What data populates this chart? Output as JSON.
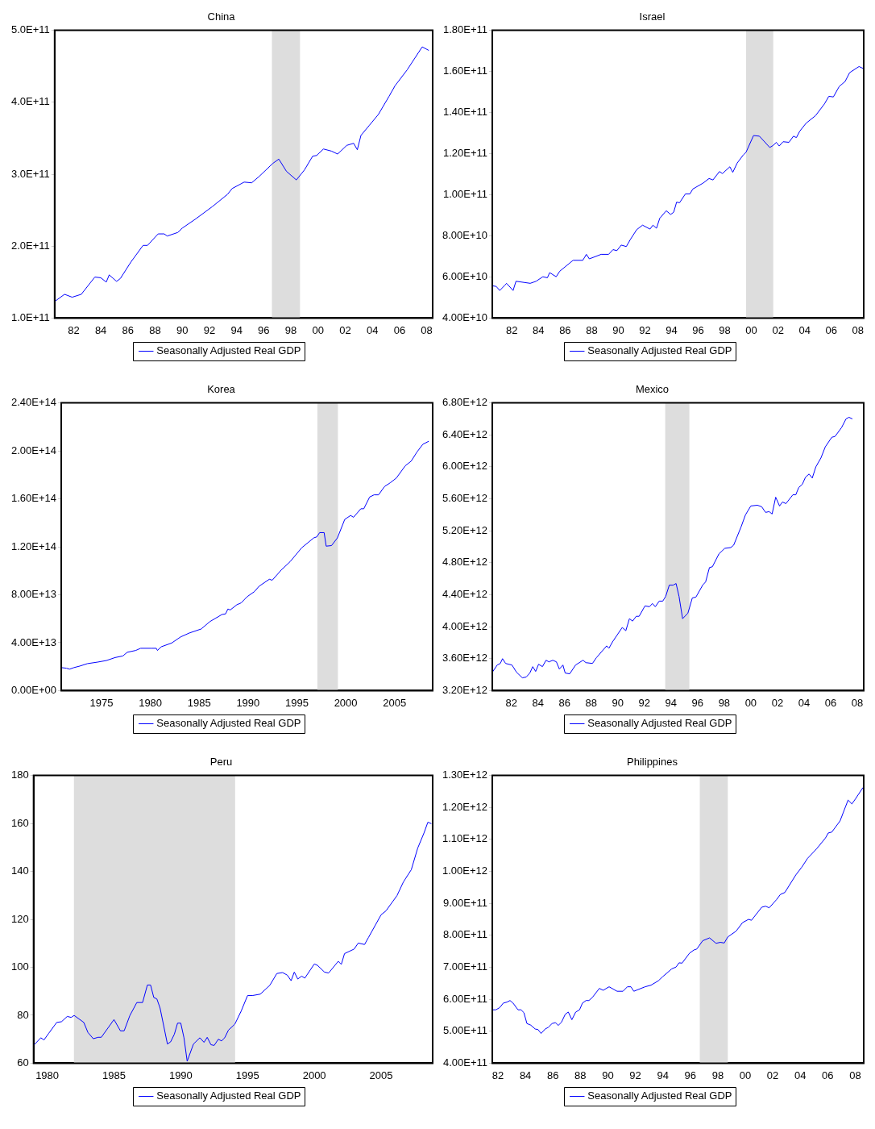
{
  "chart_data": [
    {
      "type": "line",
      "title": "China",
      "legend": "bottom",
      "grid": false,
      "x": [
        1980.6,
        1981.33,
        1981.89,
        1982.56,
        1983.56,
        1984.0,
        1984.4,
        1984.62,
        1985.16,
        1985.44,
        1986.22,
        1987.11,
        1987.44,
        1988.22,
        1988.67,
        1988.89,
        1989.67,
        1990.0,
        1991.0,
        1992.22,
        1993.33,
        1993.67,
        1994.56,
        1995.11,
        1995.67,
        1996.67,
        1997.11,
        1997.67,
        1998.4,
        1999.0,
        1999.6,
        1999.89,
        2000.4,
        2001.0,
        2001.44,
        2002.11,
        2002.62,
        2002.89,
        2003.16,
        2003.78,
        2004.44,
        2005.22,
        2005.67,
        2006.56,
        2007.67,
        2008.16
      ],
      "series": [
        {
          "name": "Seasonally Adjusted Real GDP",
          "color": "#0000ff",
          "values": [
            123000000000.0,
            133000000000.0,
            129000000000.0,
            133000000000.0,
            157000000000.0,
            156000000000.0,
            150000000000.0,
            160000000000.0,
            151000000000.0,
            155000000000.0,
            178000000000.0,
            201000000000.0,
            201000000000.0,
            217000000000.0,
            217000000000.0,
            214000000000.0,
            219000000000.0,
            225000000000.0,
            238000000000.0,
            255000000000.0,
            272000000000.0,
            280000000000.0,
            289000000000.0,
            288000000000.0,
            297000000000.0,
            315000000000.0,
            321000000000.0,
            304000000000.0,
            292000000000.0,
            306000000000.0,
            325000000000.0,
            326000000000.0,
            335000000000.0,
            332000000000.0,
            328000000000.0,
            340000000000.0,
            343000000000.0,
            334000000000.0,
            354000000000.0,
            368000000000.0,
            383000000000.0,
            408000000000.0,
            423000000000.0,
            445000000000.0,
            477000000000.0,
            472000000000.0
          ]
        }
      ],
      "xlim": [
        1980.6,
        2008.44
      ],
      "xticks": [
        {
          "value": 1982,
          "label": "82"
        },
        {
          "value": 1984,
          "label": "84"
        },
        {
          "value": 1986,
          "label": "86"
        },
        {
          "value": 1988,
          "label": "88"
        },
        {
          "value": 1990,
          "label": "90"
        },
        {
          "value": 1992,
          "label": "92"
        },
        {
          "value": 1994,
          "label": "94"
        },
        {
          "value": 1996,
          "label": "96"
        },
        {
          "value": 1998,
          "label": "98"
        },
        {
          "value": 2000,
          "label": "00"
        },
        {
          "value": 2002,
          "label": "02"
        },
        {
          "value": 2004,
          "label": "04"
        },
        {
          "value": 2006,
          "label": "06"
        },
        {
          "value": 2008,
          "label": "08"
        }
      ],
      "ylim": [
        100000000000.0,
        500000000000.0
      ],
      "yticks": [
        {
          "value": 100000000000.0,
          "label": "1.0E+11"
        },
        {
          "value": 200000000000.0,
          "label": "2.0E+11"
        },
        {
          "value": 300000000000.0,
          "label": "3.0E+11"
        },
        {
          "value": 400000000000.0,
          "label": "4.0E+11"
        },
        {
          "value": 500000000000.0,
          "label": "5.0E+11"
        }
      ],
      "bands": [
        {
          "axis": "x",
          "from": 1996.6,
          "to": 1998.67,
          "color": "#dddddd"
        }
      ]
    },
    {
      "type": "line",
      "title": "Israel",
      "legend": "bottom",
      "grid": false,
      "x": [
        1980.53,
        1980.82,
        1981.09,
        1981.49,
        1981.6,
        1982.09,
        1982.31,
        1983.38,
        1983.82,
        1984.33,
        1984.67,
        1984.84,
        1985.33,
        1985.6,
        1986.6,
        1987.33,
        1987.6,
        1987.82,
        1988.71,
        1989.27,
        1989.6,
        1989.89,
        1990.22,
        1990.6,
        1990.93,
        1991.38,
        1991.82,
        1992.38,
        1992.6,
        1992.87,
        1993.11,
        1993.6,
        1993.93,
        1994.16,
        1994.38,
        1994.6,
        1995.04,
        1995.38,
        1995.6,
        1996.38,
        1996.82,
        1997.11,
        1997.6,
        1997.82,
        1998.38,
        1998.6,
        1998.93,
        1999.38,
        1999.6,
        2000.16,
        2000.6,
        2001.38,
        2001.64,
        2001.87,
        2002.09,
        2002.38,
        2002.82,
        2003.16,
        2003.38,
        2003.64,
        2004.11,
        2004.82,
        2005.49,
        2005.82,
        2006.16,
        2006.6,
        2007.04,
        2007.38,
        2008.09,
        2008.44
      ],
      "series": [
        {
          "name": "Seasonally Adjusted Real GDP",
          "color": "#0000ff",
          "values": [
            55700000000.0,
            55400000000.0,
            53400000000.0,
            56100000000.0,
            56900000000.0,
            53400000000.0,
            57900000000.0,
            56900000000.0,
            57900000000.0,
            60100000000.0,
            59600000000.0,
            62100000000.0,
            60100000000.0,
            62800000000.0,
            68100000000.0,
            68100000000.0,
            71000000000.0,
            68800000000.0,
            71000000000.0,
            71000000000.0,
            73300000000.0,
            72800000000.0,
            75500000000.0,
            74800000000.0,
            78500000000.0,
            83000000000.0,
            85200000000.0,
            83300000000.0,
            85200000000.0,
            83700000000.0,
            88500000000.0,
            92200000000.0,
            90400000000.0,
            91500000000.0,
            96400000000.0,
            96100000000.0,
            100400000000.0,
            100400000000.0,
            102800000000.0,
            105700000000.0,
            107900000000.0,
            107200000000.0,
            111300000000.0,
            110300000000.0,
            113600000000.0,
            110900000000.0,
            115400000000.0,
            119300000000.0,
            120700000000.0,
            128800000000.0,
            128500000000.0,
            123000000000.0,
            124000000000.0,
            125500000000.0,
            123700000000.0,
            125800000000.0,
            125500000000.0,
            128500000000.0,
            127800000000.0,
            131000000000.0,
            134800000000.0,
            138500000000.0,
            144200000000.0,
            147900000000.0,
            147600000000.0,
            152700000000.0,
            155100000000.0,
            159400000000.0,
            162400000000.0,
            161300000000.0
          ]
        }
      ],
      "xlim": [
        1980.53,
        2008.44
      ],
      "xticks": [
        {
          "value": 1982,
          "label": "82"
        },
        {
          "value": 1984,
          "label": "84"
        },
        {
          "value": 1986,
          "label": "86"
        },
        {
          "value": 1988,
          "label": "88"
        },
        {
          "value": 1990,
          "label": "90"
        },
        {
          "value": 1992,
          "label": "92"
        },
        {
          "value": 1994,
          "label": "94"
        },
        {
          "value": 1996,
          "label": "96"
        },
        {
          "value": 1998,
          "label": "98"
        },
        {
          "value": 2000,
          "label": "00"
        },
        {
          "value": 2002,
          "label": "02"
        },
        {
          "value": 2004,
          "label": "04"
        },
        {
          "value": 2006,
          "label": "06"
        },
        {
          "value": 2008,
          "label": "08"
        }
      ],
      "ylim": [
        40000000000.0,
        180000000000.0
      ],
      "yticks": [
        {
          "value": 40000000000.0,
          "label": "4.00E+10"
        },
        {
          "value": 60000000000.0,
          "label": "6.00E+10"
        },
        {
          "value": 80000000000.0,
          "label": "8.00E+10"
        },
        {
          "value": 100000000000.0,
          "label": "1.00E+11"
        },
        {
          "value": 120000000000.0,
          "label": "1.20E+11"
        },
        {
          "value": 140000000000.0,
          "label": "1.40E+11"
        },
        {
          "value": 160000000000.0,
          "label": "1.60E+11"
        },
        {
          "value": 180000000000.0,
          "label": "1.80E+11"
        }
      ],
      "bands": [
        {
          "axis": "x",
          "from": 1999.6,
          "to": 2001.64,
          "color": "#dddddd"
        }
      ]
    },
    {
      "type": "line",
      "title": "Korea",
      "legend": "bottom",
      "grid": false,
      "x": [
        1970.88,
        1971.42,
        1971.73,
        1972.18,
        1972.79,
        1973.55,
        1974.6,
        1975.5,
        1976.4,
        1977.18,
        1977.64,
        1978.5,
        1979.0,
        1980.06,
        1980.6,
        1980.73,
        1981.12,
        1982.18,
        1983.1,
        1984.0,
        1985.2,
        1986.1,
        1987.33,
        1987.7,
        1987.94,
        1988.18,
        1988.85,
        1989.3,
        1989.9,
        1990.67,
        1991.12,
        1992.18,
        1992.48,
        1993.4,
        1994.3,
        1995.5,
        1996.73,
        1997.03,
        1997.33,
        1997.79,
        1998.0,
        1998.55,
        1999.15,
        1999.9,
        2000.5,
        2000.8,
        2001.55,
        2001.85,
        2002.45,
        2002.9,
        2003.36,
        2003.97,
        2004.58,
        2005.18,
        2006.1,
        2006.7,
        2007.3,
        2007.9,
        2008.5
      ],
      "series": [
        {
          "name": "Seasonally Adjusted Real GDP",
          "color": "#0000ff",
          "values": [
            19200000000000.0,
            18700000000000.0,
            17900000000000.0,
            19200000000000.0,
            20500000000000.0,
            22500000000000.0,
            23800000000000.0,
            25100000000000.0,
            27600000000000.0,
            28900000000000.0,
            32000000000000.0,
            33500000000000.0,
            35300000000000.0,
            35300000000000.0,
            35300000000000.0,
            33500000000000.0,
            36600000000000.0,
            39700000000000.0,
            44800000000000.0,
            48100000000000.0,
            51400000000000.0,
            57600000000000.0,
            63500000000000.0,
            64000000000000.0,
            68100000000000.0,
            67300000000000.0,
            71600000000000.0,
            73200000000000.0,
            78300000000000.0,
            82700000000000.0,
            87000000000000.0,
            92900000000000.0,
            92100000000000.0,
            100600000000000.0,
            107500000000000.0,
            119200000000000.0,
            127400000000000.0,
            128200000000000.0,
            131800000000000.0,
            131800000000000.0,
            120500000000000.0,
            121000000000000.0,
            127400000000000.0,
            142800000000000.0,
            146100000000000.0,
            144600000000000.0,
            151700000000000.0,
            151700000000000.0,
            161500000000000.0,
            163300000000000.0,
            163300000000000.0,
            170200000000000.0,
            173500000000000.0,
            177300000000000.0,
            187600000000000.0,
            191400000000000.0,
            199100000000000.0,
            205500000000000.0,
            208000000000000.0
          ]
        }
      ],
      "xlim": [
        1970.88,
        2008.9
      ],
      "xticks": [
        1975,
        1980,
        1985,
        1990,
        1995,
        2000,
        2005
      ],
      "ylim": [
        0,
        240000000000000.0
      ],
      "yticks": [
        {
          "value": 0,
          "label": "0.00E+00"
        },
        {
          "value": 40000000000000.0,
          "label": "4.00E+13"
        },
        {
          "value": 80000000000000.0,
          "label": "8.00E+13"
        },
        {
          "value": 120000000000000.0,
          "label": "1.20E+14"
        },
        {
          "value": 160000000000000.0,
          "label": "1.60E+14"
        },
        {
          "value": 200000000000000.0,
          "label": "2.00E+14"
        },
        {
          "value": 240000000000000.0,
          "label": "2.40E+14"
        }
      ],
      "bands": [
        {
          "axis": "x",
          "from": 1997.1,
          "to": 1999.2,
          "color": "#dddddd"
        }
      ]
    },
    {
      "type": "line",
      "title": "Mexico",
      "legend": "bottom",
      "grid": false,
      "x": [
        1980.56,
        1980.93,
        1981.16,
        1981.33,
        1981.56,
        1982.04,
        1982.38,
        1982.82,
        1983.11,
        1983.38,
        1983.6,
        1983.82,
        1984.04,
        1984.33,
        1984.6,
        1984.82,
        1985.11,
        1985.38,
        1985.6,
        1985.87,
        1986.04,
        1986.38,
        1986.82,
        1987.38,
        1987.6,
        1988.09,
        1988.38,
        1989.16,
        1989.33,
        1989.6,
        1990.33,
        1990.6,
        1990.87,
        1991.11,
        1991.38,
        1991.6,
        1992.04,
        1992.38,
        1992.6,
        1992.82,
        1993.11,
        1993.38,
        1993.6,
        1993.87,
        1994.16,
        1994.38,
        1994.6,
        1994.87,
        1995.27,
        1995.6,
        1995.87,
        1996.38,
        1996.6,
        1996.89,
        1997.11,
        1997.6,
        1998.04,
        1998.49,
        1998.71,
        1999.27,
        1999.6,
        2000.0,
        2000.49,
        2000.82,
        2001.11,
        2001.38,
        2001.6,
        2001.87,
        2002.16,
        2002.38,
        2002.64,
        2003.16,
        2003.38,
        2003.6,
        2003.87,
        2004.11,
        2004.38,
        2004.62,
        2004.89,
        2005.27,
        2005.6,
        2006.09,
        2006.33,
        2006.82,
        2007.16,
        2007.38,
        2007.64
      ],
      "series": [
        {
          "name": "Seasonally Adjusted Real GDP",
          "color": "#0000ff",
          "values": [
            3430000000000.0,
            3520000000000.0,
            3540000000000.0,
            3600000000000.0,
            3540000000000.0,
            3520000000000.0,
            3430000000000.0,
            3360000000000.0,
            3370000000000.0,
            3420000000000.0,
            3500000000000.0,
            3440000000000.0,
            3530000000000.0,
            3500000000000.0,
            3580000000000.0,
            3560000000000.0,
            3580000000000.0,
            3560000000000.0,
            3470000000000.0,
            3520000000000.0,
            3420000000000.0,
            3410000000000.0,
            3520000000000.0,
            3580000000000.0,
            3550000000000.0,
            3540000000000.0,
            3610000000000.0,
            3760000000000.0,
            3730000000000.0,
            3810000000000.0,
            3990000000000.0,
            3950000000000.0,
            4100000000000.0,
            4070000000000.0,
            4130000000000.0,
            4130000000000.0,
            4260000000000.0,
            4250000000000.0,
            4290000000000.0,
            4250000000000.0,
            4320000000000.0,
            4320000000000.0,
            4380000000000.0,
            4520000000000.0,
            4520000000000.0,
            4540000000000.0,
            4380000000000.0,
            4100000000000.0,
            4170000000000.0,
            4360000000000.0,
            4370000000000.0,
            4520000000000.0,
            4560000000000.0,
            4740000000000.0,
            4750000000000.0,
            4910000000000.0,
            4980000000000.0,
            4990000000000.0,
            5020000000000.0,
            5250000000000.0,
            5400000000000.0,
            5510000000000.0,
            5520000000000.0,
            5500000000000.0,
            5430000000000.0,
            5440000000000.0,
            5410000000000.0,
            5620000000000.0,
            5510000000000.0,
            5560000000000.0,
            5540000000000.0,
            5650000000000.0,
            5650000000000.0,
            5740000000000.0,
            5780000000000.0,
            5870000000000.0,
            5910000000000.0,
            5860000000000.0,
            6000000000000.0,
            6110000000000.0,
            6250000000000.0,
            6370000000000.0,
            6380000000000.0,
            6490000000000.0,
            6600000000000.0,
            6620000000000.0,
            6600000000000.0
          ]
        }
      ],
      "xlim": [
        1980.56,
        2008.49
      ],
      "xticks": [
        {
          "value": 1982,
          "label": "82"
        },
        {
          "value": 1984,
          "label": "84"
        },
        {
          "value": 1986,
          "label": "86"
        },
        {
          "value": 1988,
          "label": "88"
        },
        {
          "value": 1990,
          "label": "90"
        },
        {
          "value": 1992,
          "label": "92"
        },
        {
          "value": 1994,
          "label": "94"
        },
        {
          "value": 1996,
          "label": "96"
        },
        {
          "value": 1998,
          "label": "98"
        },
        {
          "value": 2000,
          "label": "00"
        },
        {
          "value": 2002,
          "label": "02"
        },
        {
          "value": 2004,
          "label": "04"
        },
        {
          "value": 2006,
          "label": "06"
        },
        {
          "value": 2008,
          "label": "08"
        }
      ],
      "ylim": [
        3200000000000.0,
        6800000000000.0
      ],
      "yticks": [
        {
          "value": 3200000000000.0,
          "label": "3.20E+12"
        },
        {
          "value": 3600000000000.0,
          "label": "3.60E+12"
        },
        {
          "value": 4000000000000.0,
          "label": "4.00E+12"
        },
        {
          "value": 4400000000000.0,
          "label": "4.40E+12"
        },
        {
          "value": 4800000000000.0,
          "label": "4.80E+12"
        },
        {
          "value": 5200000000000.0,
          "label": "5.20E+12"
        },
        {
          "value": 5600000000000.0,
          "label": "5.60E+12"
        },
        {
          "value": 6000000000000.0,
          "label": "6.00E+12"
        },
        {
          "value": 6400000000000.0,
          "label": "6.40E+12"
        },
        {
          "value": 6800000000000.0,
          "label": "6.80E+12"
        }
      ],
      "bands": [
        {
          "axis": "x",
          "from": 1993.56,
          "to": 1995.38,
          "color": "#dddddd"
        }
      ]
    },
    {
      "type": "line",
      "title": "Peru",
      "legend": "bottom",
      "grid": false,
      "x": [
        1978.98,
        1979.52,
        1979.76,
        1980.12,
        1980.71,
        1981.07,
        1981.5,
        1981.79,
        1982.02,
        1982.74,
        1983.05,
        1983.45,
        1983.81,
        1984.05,
        1985.0,
        1985.48,
        1985.76,
        1986.19,
        1986.71,
        1987.14,
        1987.5,
        1987.74,
        1987.98,
        1988.21,
        1988.45,
        1989.0,
        1989.24,
        1989.52,
        1989.76,
        1990.0,
        1990.24,
        1990.48,
        1990.95,
        1991.43,
        1991.74,
        1991.98,
        1992.26,
        1992.5,
        1992.81,
        1993.05,
        1993.29,
        1993.57,
        1994.05,
        1994.52,
        1995.0,
        1995.36,
        1995.95,
        1996.67,
        1997.19,
        1997.62,
        1997.98,
        1998.26,
        1998.5,
        1998.76,
        1999.05,
        1999.29,
        2000.0,
        2000.24,
        2000.76,
        2001.07,
        2001.79,
        2002.02,
        2002.26,
        2002.98,
        2003.29,
        2003.76,
        2004.05,
        2005.0,
        2005.36,
        2006.19,
        2006.67,
        2007.26,
        2007.74,
        2008.21,
        2008.5,
        2008.76
      ],
      "series": [
        {
          "name": "Seasonally Adjusted Real GDP",
          "color": "#0000ff",
          "values": [
            67.4,
            70.6,
            69.7,
            72.5,
            77.0,
            77.3,
            79.5,
            79.1,
            79.9,
            77.0,
            72.8,
            70.2,
            70.8,
            70.8,
            78.2,
            73.5,
            73.5,
            79.9,
            85.3,
            85.3,
            92.6,
            92.6,
            87.4,
            86.8,
            83.0,
            68.0,
            68.9,
            72.1,
            76.7,
            76.7,
            70.6,
            60.8,
            68.0,
            70.6,
            68.7,
            70.8,
            67.7,
            67.4,
            70.0,
            69.3,
            70.6,
            73.8,
            76.3,
            81.7,
            88.2,
            88.2,
            88.8,
            92.5,
            97.4,
            97.8,
            96.7,
            94.4,
            98.0,
            95.1,
            96.3,
            95.5,
            101.4,
            100.8,
            98.0,
            97.6,
            102.5,
            101.2,
            105.7,
            107.6,
            110.1,
            109.5,
            112.4,
            121.9,
            123.5,
            129.9,
            135.6,
            140.7,
            149.7,
            156.0,
            160.5,
            159.9
          ]
        }
      ],
      "xlim": [
        1978.98,
        2008.86
      ],
      "xticks": [
        1980,
        1985,
        1990,
        1995,
        2000,
        2005
      ],
      "ylim": [
        60,
        180
      ],
      "yticks": [
        60,
        80,
        100,
        120,
        140,
        160,
        180
      ],
      "bands": [
        {
          "axis": "x",
          "from": 1982.0,
          "to": 1994.07,
          "color": "#dddddd"
        }
      ]
    },
    {
      "type": "line",
      "title": "Philippines",
      "legend": "bottom",
      "grid": false,
      "x": [
        1981.59,
        1981.85,
        1982.13,
        1982.39,
        1982.65,
        1982.88,
        1983.1,
        1983.46,
        1983.68,
        1983.89,
        1984.11,
        1984.39,
        1984.71,
        1984.92,
        1985.14,
        1985.44,
        1985.66,
        1985.94,
        1986.19,
        1986.39,
        1986.62,
        1986.9,
        1987.12,
        1987.38,
        1987.66,
        1987.94,
        1988.15,
        1988.41,
        1988.62,
        1988.88,
        1989.38,
        1989.66,
        1990.09,
        1990.67,
        1991.1,
        1991.42,
        1991.68,
        1991.89,
        1992.71,
        1993.14,
        1993.68,
        1994.0,
        1994.65,
        1994.97,
        1995.18,
        1995.4,
        1995.94,
        1996.26,
        1996.47,
        1996.9,
        1997.4,
        1997.87,
        1998.19,
        1998.47,
        1998.73,
        1999.33,
        1999.81,
        2000.24,
        2000.45,
        2001.2,
        2001.48,
        2001.74,
        2002.28,
        2002.56,
        2002.88,
        2003.68,
        2004.11,
        2004.54,
        2005.18,
        2005.83,
        2006.04,
        2006.3,
        2006.9,
        2007.48,
        2007.76,
        2008.04,
        2008.56
      ],
      "series": [
        {
          "name": "Seasonally Adjusted Real GDP",
          "color": "#0000ff",
          "values": [
            567000000000.0,
            567000000000.0,
            574000000000.0,
            588000000000.0,
            591000000000.0,
            596000000000.0,
            588000000000.0,
            567000000000.0,
            567000000000.0,
            558000000000.0,
            524000000000.0,
            519000000000.0,
            507000000000.0,
            505000000000.0,
            493000000000.0,
            507000000000.0,
            512000000000.0,
            524000000000.0,
            527000000000.0,
            518000000000.0,
            528000000000.0,
            553000000000.0,
            560000000000.0,
            536000000000.0,
            560000000000.0,
            567000000000.0,
            588000000000.0,
            596000000000.0,
            596000000000.0,
            606000000000.0,
            634000000000.0,
            628000000000.0,
            639000000000.0,
            625000000000.0,
            625000000000.0,
            639000000000.0,
            639000000000.0,
            625000000000.0,
            639000000000.0,
            644000000000.0,
            658000000000.0,
            671000000000.0,
            695000000000.0,
            701000000000.0,
            714000000000.0,
            713000000000.0,
            744000000000.0,
            754000000000.0,
            757000000000.0,
            783000000000.0,
            792000000000.0,
            775000000000.0,
            778000000000.0,
            776000000000.0,
            795000000000.0,
            813000000000.0,
            840000000000.0,
            850000000000.0,
            847000000000.0,
            888000000000.0,
            891000000000.0,
            886000000000.0,
            912000000000.0,
            928000000000.0,
            934000000000.0,
            989000000000.0,
            1013000000000.0,
            1041000000000.0,
            1070000000000.0,
            1104000000000.0,
            1120000000000.0,
            1123000000000.0,
            1158000000000.0,
            1223000000000.0,
            1211000000000.0,
            1228000000000.0,
            1262000000000.0
          ]
        }
      ],
      "xlim": [
        1981.59,
        2008.62
      ],
      "xticks": [
        {
          "value": 1982,
          "label": "82"
        },
        {
          "value": 1984,
          "label": "84"
        },
        {
          "value": 1986,
          "label": "86"
        },
        {
          "value": 1988,
          "label": "88"
        },
        {
          "value": 1990,
          "label": "90"
        },
        {
          "value": 1992,
          "label": "92"
        },
        {
          "value": 1994,
          "label": "94"
        },
        {
          "value": 1996,
          "label": "96"
        },
        {
          "value": 1998,
          "label": "98"
        },
        {
          "value": 2000,
          "label": "00"
        },
        {
          "value": 2002,
          "label": "02"
        },
        {
          "value": 2004,
          "label": "04"
        },
        {
          "value": 2006,
          "label": "06"
        },
        {
          "value": 2008,
          "label": "08"
        }
      ],
      "ylim": [
        400000000000.0,
        1300000000000.0
      ],
      "yticks": [
        {
          "value": 400000000000.0,
          "label": "4.00E+11"
        },
        {
          "value": 500000000000.0,
          "label": "5.00E+11"
        },
        {
          "value": 600000000000.0,
          "label": "6.00E+11"
        },
        {
          "value": 700000000000.0,
          "label": "7.00E+11"
        },
        {
          "value": 800000000000.0,
          "label": "8.00E+11"
        },
        {
          "value": 900000000000.0,
          "label": "9.00E+11"
        },
        {
          "value": 1000000000000.0,
          "label": "1.00E+12"
        },
        {
          "value": 1100000000000.0,
          "label": "1.10E+12"
        },
        {
          "value": 1200000000000.0,
          "label": "1.20E+12"
        },
        {
          "value": 1300000000000.0,
          "label": "1.30E+12"
        }
      ],
      "bands": [
        {
          "axis": "x",
          "from": 1996.69,
          "to": 1998.73,
          "color": "#dddddd"
        }
      ]
    }
  ]
}
